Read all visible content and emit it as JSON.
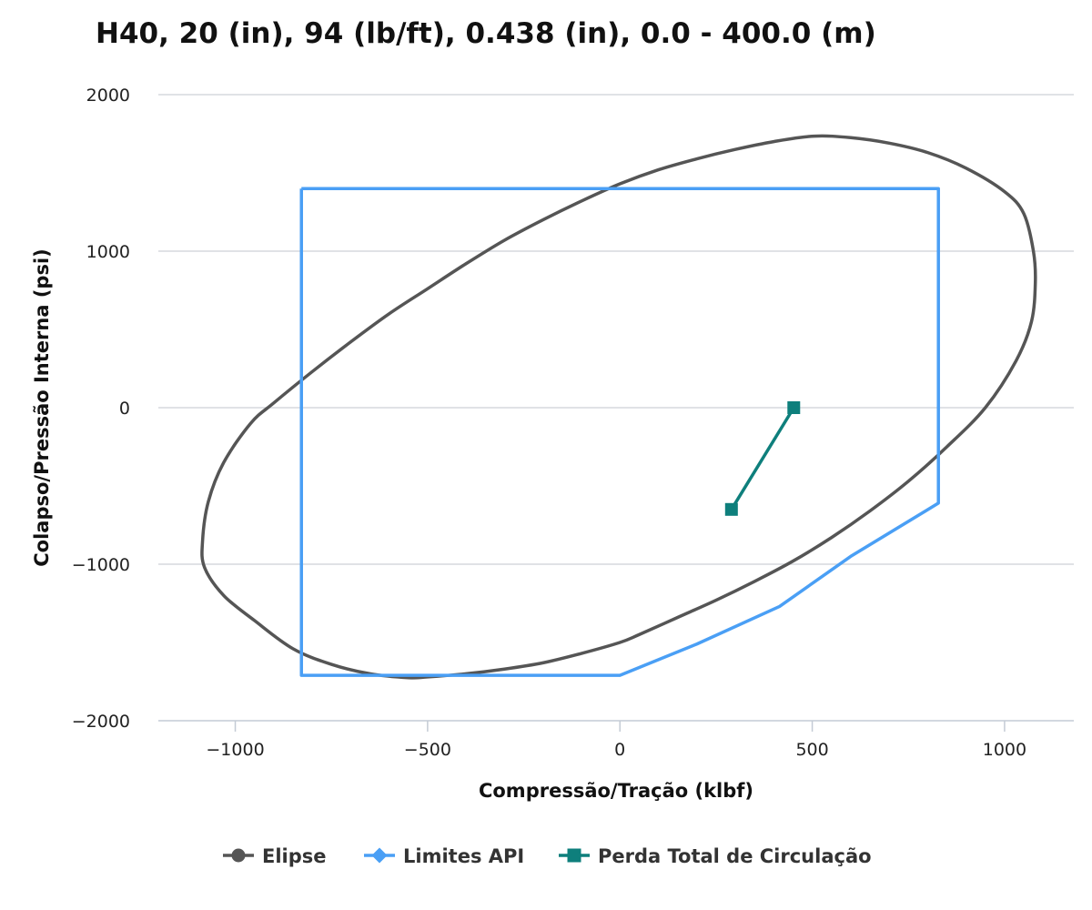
{
  "chart_data": {
    "type": "line",
    "title": "H40, 20 (in), 94 (lb/ft), 0.438 (in), 0.0 - 400.0 (m)",
    "xlabel": "Compressão/Tração (klbf)",
    "ylabel": "Colapso/Pressão Interna (psi)",
    "xlim": [
      -1200,
      1180
    ],
    "ylim": [
      -2000,
      2000
    ],
    "xticks": [
      -1000,
      -500,
      0,
      500,
      1000
    ],
    "yticks": [
      -2000,
      -1000,
      0,
      1000,
      2000
    ],
    "xtick_labels": [
      "−1000",
      "−500",
      "0",
      "500",
      "1000"
    ],
    "ytick_labels": [
      "−2000",
      "−1000",
      "0",
      "1000",
      "2000"
    ],
    "grid": "horizontal",
    "legend": "bottom-center",
    "series": [
      {
        "name": "Elipse",
        "color": "#555555",
        "marker": "circle",
        "x": [
          505,
          600,
          700,
          800,
          900,
          1000,
          1050,
          1075,
          1080,
          1070,
          1030,
          950,
          850,
          750,
          650,
          550,
          450,
          350,
          250,
          150,
          50,
          0,
          -100,
          -200,
          -300,
          -400,
          -500,
          -550,
          -650,
          -750,
          -850,
          -950,
          -1030,
          -1080,
          -1085,
          -1070,
          -1030,
          -960,
          -900,
          -800,
          -700,
          -600,
          -500,
          -400,
          -300,
          -200,
          -100,
          0,
          100,
          200,
          300,
          400,
          505
        ],
        "y": [
          1735,
          1725,
          1690,
          1630,
          1530,
          1380,
          1240,
          1000,
          800,
          550,
          300,
          0,
          -250,
          -470,
          -660,
          -830,
          -980,
          -1110,
          -1230,
          -1340,
          -1450,
          -1500,
          -1570,
          -1630,
          -1670,
          -1700,
          -1720,
          -1725,
          -1700,
          -1640,
          -1540,
          -1360,
          -1200,
          -1020,
          -850,
          -600,
          -350,
          -100,
          30,
          230,
          420,
          600,
          760,
          920,
          1070,
          1200,
          1320,
          1430,
          1520,
          1590,
          1650,
          1700,
          1735
        ]
      },
      {
        "name": "Limites API",
        "color": "#4a9ff5",
        "marker": "diamond",
        "x": [
          -828,
          828,
          828,
          600,
          415,
          200,
          0,
          -828,
          -828
        ],
        "y": [
          1400,
          1400,
          -610,
          -950,
          -1270,
          -1510,
          -1710,
          -1710,
          1400
        ]
      },
      {
        "name": "Perda Total de Circulação",
        "color": "#0e7f7c",
        "marker": "square",
        "x": [
          452,
          290
        ],
        "y": [
          0,
          -650
        ]
      }
    ]
  }
}
